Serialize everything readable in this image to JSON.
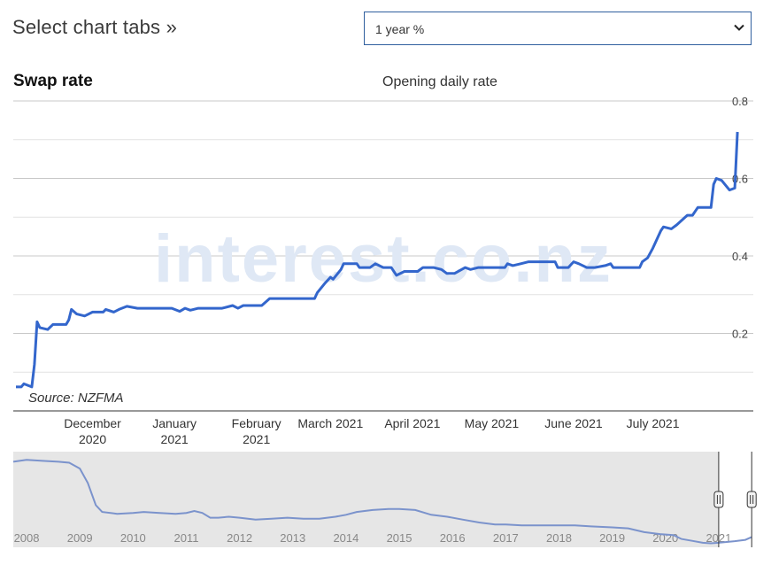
{
  "header": {
    "title": "Select chart tabs »"
  },
  "selector": {
    "value": "1 year %"
  },
  "chart_data": [
    {
      "type": "line",
      "title": "Swap rate",
      "subtitle": "Opening daily rate",
      "source": "Source: NZFMA",
      "watermark": "interest.co.nz",
      "color": "#3366cc",
      "ylim": [
        0.0,
        0.8
      ],
      "y_ticks": [
        0.2,
        0.4,
        0.6,
        0.8
      ],
      "grid": true,
      "xlim": [
        "2020-11-01",
        "2021-08-08"
      ],
      "x_ticks": [
        {
          "label": [
            "December",
            "2020"
          ],
          "date": "2020-12-01"
        },
        {
          "label": [
            "January",
            "2021"
          ],
          "date": "2021-01-01"
        },
        {
          "label": [
            "February",
            "2021"
          ],
          "date": "2021-02-01"
        },
        {
          "label": [
            "March 2021"
          ],
          "date": "2021-03-01"
        },
        {
          "label": [
            "April 2021"
          ],
          "date": "2021-04-01"
        },
        {
          "label": [
            "May 2021"
          ],
          "date": "2021-05-01"
        },
        {
          "label": [
            "June 2021"
          ],
          "date": "2021-06-01"
        },
        {
          "label": [
            "July 2021"
          ],
          "date": "2021-07-01"
        }
      ],
      "series": [
        {
          "points": [
            [
              "2020-11-02",
              0.062
            ],
            [
              "2020-11-04",
              0.062
            ],
            [
              "2020-11-05",
              0.07
            ],
            [
              "2020-11-08",
              0.062
            ],
            [
              "2020-11-09",
              0.12
            ],
            [
              "2020-11-10",
              0.23
            ],
            [
              "2020-11-11",
              0.215
            ],
            [
              "2020-11-14",
              0.21
            ],
            [
              "2020-11-16",
              0.223
            ],
            [
              "2020-11-21",
              0.223
            ],
            [
              "2020-11-22",
              0.235
            ],
            [
              "2020-11-23",
              0.262
            ],
            [
              "2020-11-25",
              0.25
            ],
            [
              "2020-11-28",
              0.245
            ],
            [
              "2020-12-01",
              0.255
            ],
            [
              "2020-12-05",
              0.255
            ],
            [
              "2020-12-06",
              0.262
            ],
            [
              "2020-12-09",
              0.255
            ],
            [
              "2020-12-11",
              0.262
            ],
            [
              "2020-12-14",
              0.27
            ],
            [
              "2020-12-18",
              0.265
            ],
            [
              "2020-12-31",
              0.265
            ],
            [
              "2021-01-03",
              0.257
            ],
            [
              "2021-01-05",
              0.265
            ],
            [
              "2021-01-07",
              0.26
            ],
            [
              "2021-01-10",
              0.265
            ],
            [
              "2021-01-19",
              0.265
            ],
            [
              "2021-01-23",
              0.272
            ],
            [
              "2021-01-25",
              0.265
            ],
            [
              "2021-01-27",
              0.272
            ],
            [
              "2021-02-03",
              0.272
            ],
            [
              "2021-02-06",
              0.29
            ],
            [
              "2021-02-23",
              0.29
            ],
            [
              "2021-02-24",
              0.305
            ],
            [
              "2021-02-27",
              0.33
            ],
            [
              "2021-03-01",
              0.345
            ],
            [
              "2021-03-02",
              0.34
            ],
            [
              "2021-03-05",
              0.365
            ],
            [
              "2021-03-06",
              0.38
            ],
            [
              "2021-03-11",
              0.38
            ],
            [
              "2021-03-12",
              0.37
            ],
            [
              "2021-03-16",
              0.37
            ],
            [
              "2021-03-18",
              0.38
            ],
            [
              "2021-03-21",
              0.37
            ],
            [
              "2021-03-24",
              0.37
            ],
            [
              "2021-03-26",
              0.35
            ],
            [
              "2021-03-29",
              0.36
            ],
            [
              "2021-04-03",
              0.36
            ],
            [
              "2021-04-05",
              0.37
            ],
            [
              "2021-04-09",
              0.37
            ],
            [
              "2021-04-12",
              0.365
            ],
            [
              "2021-04-14",
              0.355
            ],
            [
              "2021-04-17",
              0.355
            ],
            [
              "2021-04-21",
              0.37
            ],
            [
              "2021-04-23",
              0.365
            ],
            [
              "2021-04-26",
              0.37
            ],
            [
              "2021-05-06",
              0.37
            ],
            [
              "2021-05-07",
              0.38
            ],
            [
              "2021-05-09",
              0.375
            ],
            [
              "2021-05-12",
              0.38
            ],
            [
              "2021-05-15",
              0.385
            ],
            [
              "2021-05-25",
              0.385
            ],
            [
              "2021-05-26",
              0.37
            ],
            [
              "2021-05-30",
              0.37
            ],
            [
              "2021-06-01",
              0.385
            ],
            [
              "2021-06-03",
              0.38
            ],
            [
              "2021-06-06",
              0.37
            ],
            [
              "2021-06-09",
              0.37
            ],
            [
              "2021-06-13",
              0.375
            ],
            [
              "2021-06-15",
              0.38
            ],
            [
              "2021-06-16",
              0.37
            ],
            [
              "2021-06-26",
              0.37
            ],
            [
              "2021-06-27",
              0.385
            ],
            [
              "2021-06-29",
              0.395
            ],
            [
              "2021-07-01",
              0.42
            ],
            [
              "2021-07-04",
              0.465
            ],
            [
              "2021-07-05",
              0.475
            ],
            [
              "2021-07-08",
              0.47
            ],
            [
              "2021-07-10",
              0.48
            ],
            [
              "2021-07-14",
              0.505
            ],
            [
              "2021-07-16",
              0.505
            ],
            [
              "2021-07-18",
              0.525
            ],
            [
              "2021-07-23",
              0.525
            ],
            [
              "2021-07-24",
              0.585
            ],
            [
              "2021-07-25",
              0.6
            ],
            [
              "2021-07-27",
              0.595
            ],
            [
              "2021-07-30",
              0.57
            ],
            [
              "2021-08-01",
              0.575
            ],
            [
              "2021-08-02",
              0.72
            ]
          ]
        }
      ]
    },
    {
      "type": "area",
      "x_tick_labels": [
        "2008",
        "2009",
        "2010",
        "2011",
        "2012",
        "2013",
        "2014",
        "2015",
        "2016",
        "2017",
        "2018",
        "2019",
        "2020",
        "2021"
      ],
      "xlim": [
        2007.75,
        2021.65
      ],
      "ylim": [
        0,
        9
      ],
      "selected_range": [
        2021.0,
        2021.62
      ],
      "series": [
        {
          "points": [
            [
              2007.75,
              8.5
            ],
            [
              2008.0,
              8.7
            ],
            [
              2008.3,
              8.6
            ],
            [
              2008.6,
              8.5
            ],
            [
              2008.8,
              8.4
            ],
            [
              2009.0,
              7.8
            ],
            [
              2009.15,
              6.3
            ],
            [
              2009.3,
              4.0
            ],
            [
              2009.42,
              3.3
            ],
            [
              2009.7,
              3.1
            ],
            [
              2010.0,
              3.2
            ],
            [
              2010.2,
              3.3
            ],
            [
              2010.5,
              3.2
            ],
            [
              2010.8,
              3.1
            ],
            [
              2011.0,
              3.2
            ],
            [
              2011.15,
              3.4
            ],
            [
              2011.3,
              3.2
            ],
            [
              2011.45,
              2.7
            ],
            [
              2011.6,
              2.7
            ],
            [
              2011.8,
              2.8
            ],
            [
              2012.0,
              2.7
            ],
            [
              2012.3,
              2.5
            ],
            [
              2012.6,
              2.6
            ],
            [
              2012.9,
              2.7
            ],
            [
              2013.2,
              2.6
            ],
            [
              2013.5,
              2.6
            ],
            [
              2013.8,
              2.8
            ],
            [
              2014.0,
              3.0
            ],
            [
              2014.2,
              3.3
            ],
            [
              2014.5,
              3.5
            ],
            [
              2014.8,
              3.6
            ],
            [
              2015.0,
              3.6
            ],
            [
              2015.3,
              3.5
            ],
            [
              2015.6,
              3.0
            ],
            [
              2015.9,
              2.8
            ],
            [
              2016.2,
              2.5
            ],
            [
              2016.5,
              2.2
            ],
            [
              2016.8,
              2.0
            ],
            [
              2017.0,
              2.0
            ],
            [
              2017.3,
              1.9
            ],
            [
              2017.6,
              1.9
            ],
            [
              2018.0,
              1.9
            ],
            [
              2018.3,
              1.9
            ],
            [
              2018.6,
              1.8
            ],
            [
              2019.0,
              1.7
            ],
            [
              2019.3,
              1.6
            ],
            [
              2019.6,
              1.2
            ],
            [
              2019.9,
              1.0
            ],
            [
              2020.15,
              0.9
            ],
            [
              2020.3,
              0.5
            ],
            [
              2020.5,
              0.3
            ],
            [
              2020.7,
              0.1
            ],
            [
              2020.85,
              0.05
            ],
            [
              2021.0,
              0.1
            ],
            [
              2021.3,
              0.27
            ],
            [
              2021.5,
              0.4
            ],
            [
              2021.62,
              0.7
            ]
          ]
        }
      ]
    }
  ]
}
